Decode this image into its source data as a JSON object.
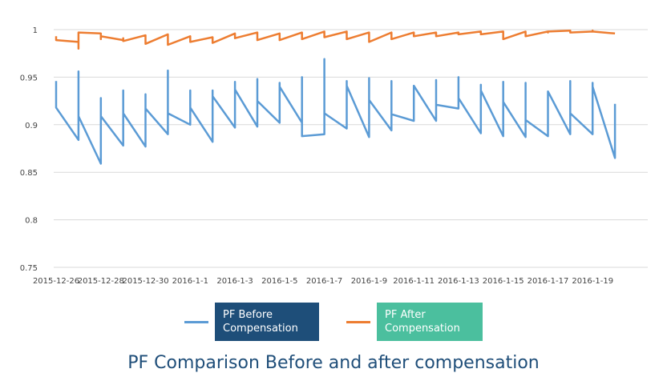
{
  "chart_data": {
    "type": "line",
    "title": "PF Comparison Before and after compensation",
    "xlabel": "",
    "ylabel": "",
    "ylim": [
      0.75,
      1.0
    ],
    "yticks": [
      "0.75",
      "0.8",
      "0.85",
      "0.9",
      "0.95",
      "1"
    ],
    "grid": true,
    "legend_position": "bottom",
    "x_ticks": [
      "2015-12-26",
      "2015-12-28",
      "2015-12-30",
      "2016-1-1",
      "2016-1-3",
      "2016-1-5",
      "2016-1-7",
      "2016-1-9",
      "2016-1-11",
      "2016-1-13",
      "2016-1-15",
      "2016-1-17",
      "2016-1-19"
    ],
    "x_days": 26,
    "series": [
      {
        "name": "PF Before Compensation",
        "color": "#5b9bd5",
        "values": [
          0.946,
          0.918,
          0.884,
          0.956,
          0.909,
          0.859,
          0.928,
          0.909,
          0.878,
          0.936,
          0.912,
          0.877,
          0.932,
          0.917,
          0.89,
          0.957,
          0.912,
          0.9,
          0.936,
          0.918,
          0.882,
          0.936,
          0.93,
          0.897,
          0.945,
          0.937,
          0.898,
          0.948,
          0.925,
          0.902,
          0.944,
          0.94,
          0.902,
          0.95,
          0.888,
          0.89,
          0.969,
          0.912,
          0.896,
          0.946,
          0.941,
          0.887,
          0.949,
          0.926,
          0.894,
          0.946,
          0.911,
          0.904,
          0.936,
          0.941,
          0.904,
          0.947,
          0.921,
          0.917,
          0.95,
          0.928,
          0.891,
          0.942,
          0.936,
          0.888,
          0.945,
          0.924,
          0.887,
          0.944,
          0.905,
          0.888,
          0.935,
          0.935,
          0.89,
          0.946,
          0.912,
          0.89,
          0.944,
          0.94,
          0.865,
          0.922
        ]
      },
      {
        "name": "PF After Compensation",
        "color": "#ed7d31",
        "values": [
          0.993,
          0.989,
          0.987,
          0.98,
          0.997,
          0.996,
          0.99,
          0.993,
          0.989,
          0.991,
          0.988,
          0.994,
          0.989,
          0.985,
          0.995,
          0.99,
          0.984,
          0.993,
          0.992,
          0.987,
          0.992,
          0.991,
          0.986,
          0.996,
          0.991,
          0.991,
          0.997,
          0.993,
          0.989,
          0.996,
          0.993,
          0.989,
          0.997,
          0.995,
          0.99,
          0.998,
          0.995,
          0.992,
          0.998,
          0.99,
          0.99,
          0.997,
          0.993,
          0.987,
          0.997,
          0.995,
          0.99,
          0.997,
          0.996,
          0.993,
          0.997,
          0.996,
          0.993,
          0.997,
          0.996,
          0.995,
          0.998,
          0.997,
          0.995,
          0.998,
          0.996,
          0.99,
          0.998,
          0.997,
          0.993,
          0.998,
          0.997,
          0.998,
          0.999,
          0.998,
          0.997,
          0.998,
          0.999,
          0.998,
          0.996,
          0.996
        ]
      }
    ]
  },
  "legend": {
    "before_label": "PF Before\nCompensation",
    "before_box_color": "#1e4e79",
    "after_label": "PF After\nCompensation",
    "after_box_color": "#4bbf9e"
  },
  "page": {
    "title": "PF Comparison Before and after compensation",
    "title_color": "#1f4e79"
  }
}
